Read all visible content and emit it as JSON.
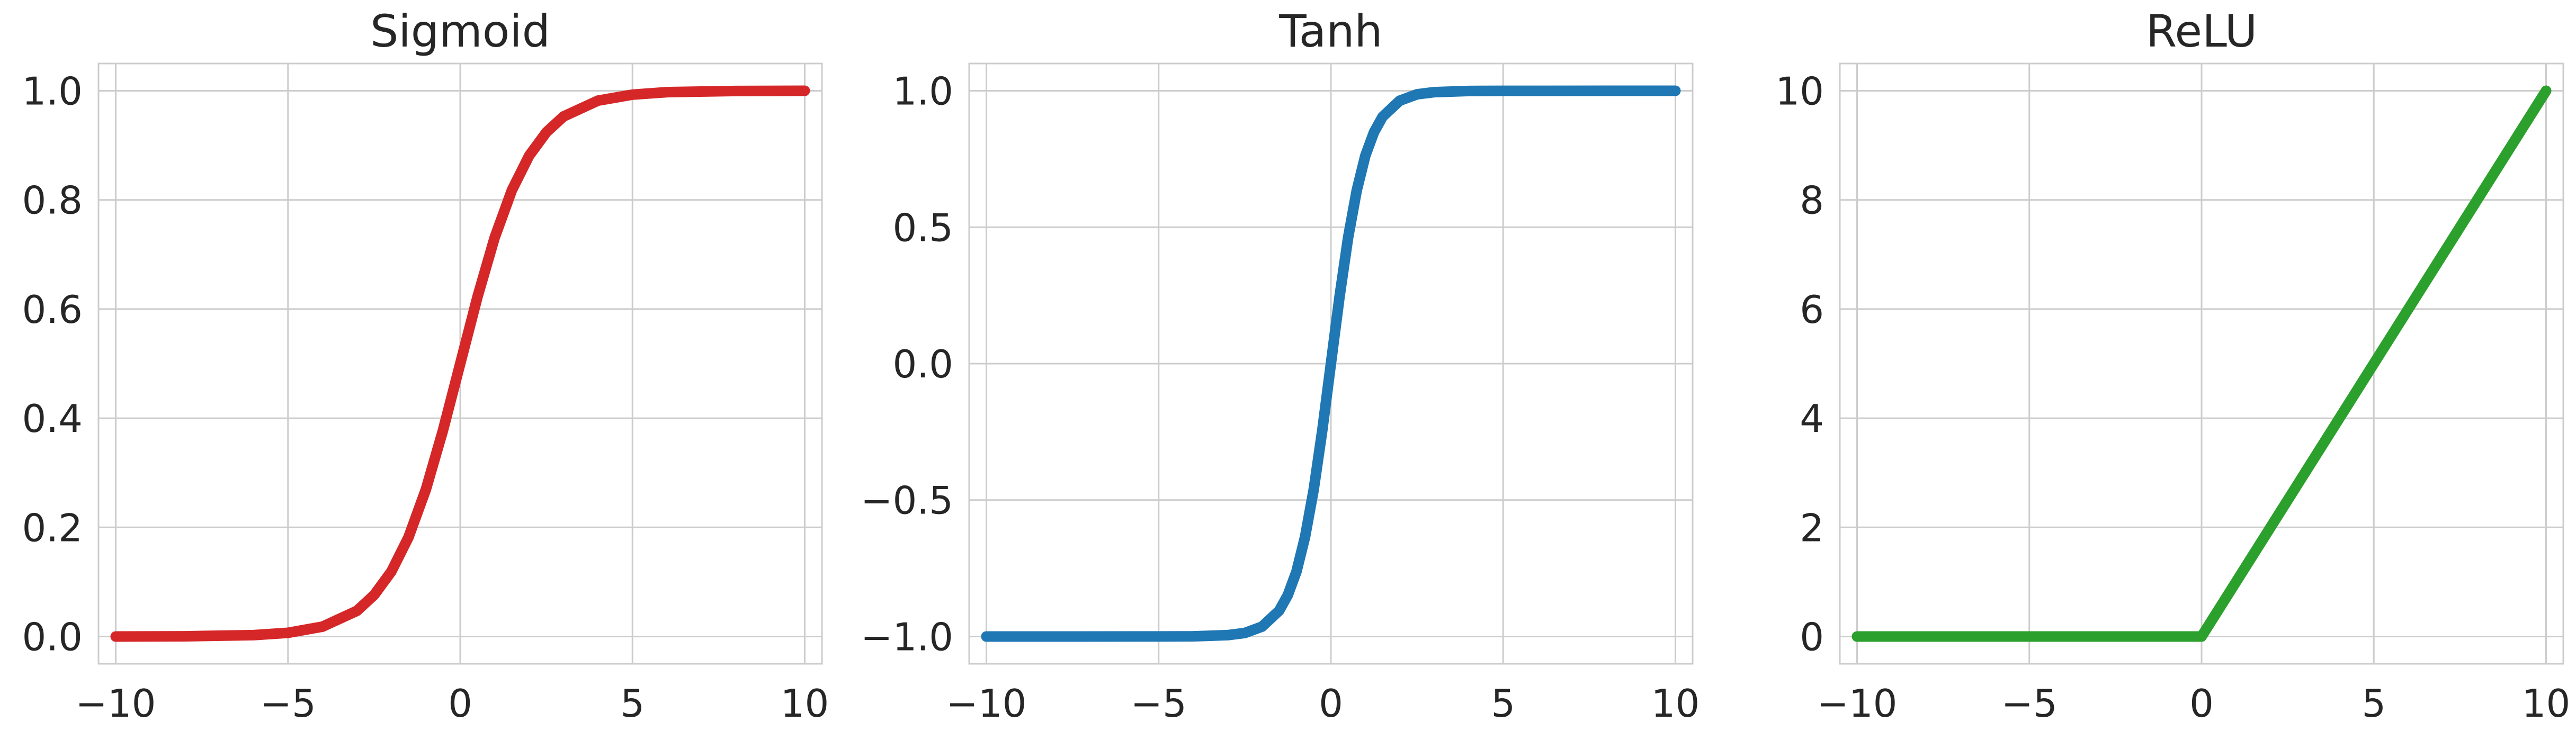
{
  "chart_data": [
    {
      "type": "line",
      "title": "Sigmoid",
      "xlabel": "",
      "ylabel": "",
      "xlim": [
        -10.5,
        10.5
      ],
      "ylim": [
        -0.05,
        1.05
      ],
      "xticks": [
        -10,
        -5,
        0,
        5,
        10
      ],
      "xtick_labels": [
        "−10",
        "−5",
        "0",
        "5",
        "10"
      ],
      "yticks": [
        0.0,
        0.2,
        0.4,
        0.6,
        0.8,
        1.0
      ],
      "ytick_labels": [
        "0.0",
        "0.2",
        "0.4",
        "0.6",
        "0.8",
        "1.0"
      ],
      "grid": true,
      "color": "#d62728",
      "series": [
        {
          "x": [
            -10,
            -8,
            -6,
            -5,
            -4,
            -3,
            -2.5,
            -2,
            -1.5,
            -1,
            -0.5,
            0,
            0.5,
            1,
            1.5,
            2,
            2.5,
            3,
            4,
            5,
            6,
            8,
            10
          ],
          "y": [
            0.0,
            0.0003,
            0.0025,
            0.0067,
            0.018,
            0.047,
            0.076,
            0.119,
            0.182,
            0.269,
            0.378,
            0.5,
            0.622,
            0.731,
            0.818,
            0.881,
            0.924,
            0.953,
            0.982,
            0.993,
            0.9975,
            0.9997,
            1.0
          ]
        }
      ]
    },
    {
      "type": "line",
      "title": "Tanh",
      "xlabel": "",
      "ylabel": "",
      "xlim": [
        -10.5,
        10.5
      ],
      "ylim": [
        -1.1,
        1.1
      ],
      "xticks": [
        -10,
        -5,
        0,
        5,
        10
      ],
      "xtick_labels": [
        "−10",
        "−5",
        "0",
        "5",
        "10"
      ],
      "yticks": [
        -1.0,
        -0.5,
        0.0,
        0.5,
        1.0
      ],
      "ytick_labels": [
        "−1.0",
        "−0.5",
        "0.0",
        "0.5",
        "1.0"
      ],
      "grid": true,
      "color": "#1f77b4",
      "series": [
        {
          "x": [
            -10,
            -5,
            -4,
            -3,
            -2.5,
            -2,
            -1.5,
            -1.25,
            -1,
            -0.75,
            -0.5,
            -0.25,
            0,
            0.25,
            0.5,
            0.75,
            1,
            1.25,
            1.5,
            2,
            2.5,
            3,
            4,
            5,
            10
          ],
          "y": [
            -1.0,
            -0.9999,
            -0.9993,
            -0.995,
            -0.987,
            -0.964,
            -0.905,
            -0.848,
            -0.762,
            -0.635,
            -0.462,
            -0.245,
            0.0,
            0.245,
            0.462,
            0.635,
            0.762,
            0.848,
            0.905,
            0.964,
            0.987,
            0.995,
            0.9993,
            0.9999,
            1.0
          ]
        }
      ]
    },
    {
      "type": "line",
      "title": "ReLU",
      "xlabel": "",
      "ylabel": "",
      "xlim": [
        -10.5,
        10.5
      ],
      "ylim": [
        -0.5,
        10.5
      ],
      "xticks": [
        -10,
        -5,
        0,
        5,
        10
      ],
      "xtick_labels": [
        "−10",
        "−5",
        "0",
        "5",
        "10"
      ],
      "yticks": [
        0,
        2,
        4,
        6,
        8,
        10
      ],
      "ytick_labels": [
        "0",
        "2",
        "4",
        "6",
        "8",
        "10"
      ],
      "grid": true,
      "color": "#2ca02c",
      "series": [
        {
          "x": [
            -10,
            0,
            10
          ],
          "y": [
            0,
            0,
            10
          ]
        }
      ]
    }
  ]
}
